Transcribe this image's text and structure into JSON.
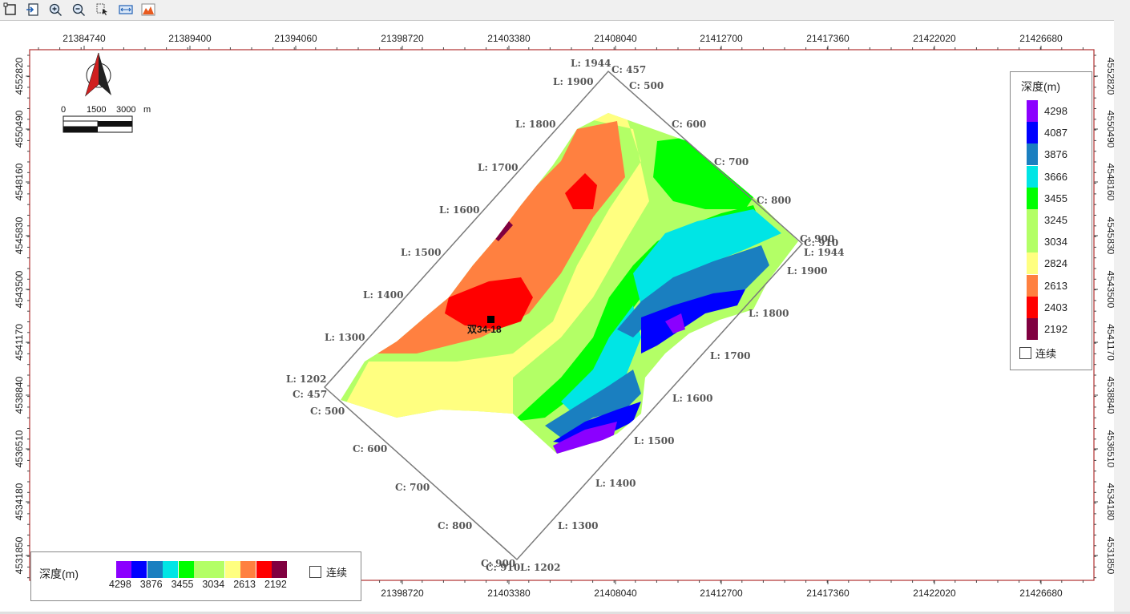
{
  "toolbar": {
    "buttons": [
      {
        "name": "select-rect-button",
        "icon": "select-rect-icon"
      },
      {
        "name": "save-image-button",
        "icon": "save-image-icon"
      },
      {
        "name": "zoom-in-button",
        "icon": "zoom-in-icon"
      },
      {
        "name": "zoom-out-button",
        "icon": "zoom-out-icon"
      },
      {
        "name": "pointer-tool-button",
        "icon": "pointer-icon"
      },
      {
        "name": "fit-width-button",
        "icon": "fit-width-icon"
      },
      {
        "name": "color-scale-button",
        "icon": "color-scale-icon"
      }
    ]
  },
  "map": {
    "x_ticks": [
      "21384740",
      "21389400",
      "21394060",
      "21398720",
      "21403380",
      "21408040",
      "21412700",
      "21417360",
      "21422020",
      "21426680"
    ],
    "y_ticks": [
      "4552820",
      "4550490",
      "4548160",
      "4545830",
      "4543500",
      "4541170",
      "4538840",
      "4536510",
      "4534180",
      "4531850"
    ],
    "scale_bar": {
      "labels": [
        "0",
        "1500",
        "3000",
        "m"
      ]
    },
    "well_label": "双34-18",
    "survey_labels": {
      "top_lines": [
        "L: 1944",
        "L: 1900",
        "L: 1800",
        "L: 1700",
        "L: 1600",
        "L: 1500",
        "L: 1400",
        "L: 1300",
        "L: 1202"
      ],
      "left_cols": [
        "C: 457",
        "C: 500",
        "C: 600",
        "C: 700",
        "C: 800",
        "C: 900",
        "C: 910"
      ],
      "upper_cols": [
        "C: 457",
        "C: 500",
        "C: 600",
        "C: 700",
        "C: 800",
        "C: 900",
        "C: 910"
      ],
      "right_lines": [
        "L: 1944",
        "L: 1900",
        "L: 1800",
        "L: 1700",
        "L: 1600",
        "L: 1500",
        "L: 1400",
        "L: 1300",
        "L: 1202"
      ]
    },
    "colors": {
      "frame": "#b03030",
      "4298": "#8b00ff",
      "4087": "#0000ff",
      "3876": "#1a7fc0",
      "3666": "#00e5e5",
      "3455": "#00ff00",
      "3245": "#b3ff66",
      "3034": "#b3ff66",
      "2824": "#ffff80",
      "2613": "#ff8040",
      "2403": "#ff0000",
      "2192": "#800040"
    }
  },
  "legend_vertical": {
    "title": "深度(m)",
    "items": [
      {
        "label": "4298",
        "color": "#8b00ff"
      },
      {
        "label": "4087",
        "color": "#0000ff"
      },
      {
        "label": "3876",
        "color": "#1a7fc0"
      },
      {
        "label": "3666",
        "color": "#00e5e5"
      },
      {
        "label": "3455",
        "color": "#00ff00"
      },
      {
        "label": "3245",
        "color": "#b3ff66"
      },
      {
        "label": "3034",
        "color": "#b3ff66"
      },
      {
        "label": "2824",
        "color": "#ffff80"
      },
      {
        "label": "2613",
        "color": "#ff8040"
      },
      {
        "label": "2403",
        "color": "#ff0000"
      },
      {
        "label": "2192",
        "color": "#800040"
      }
    ],
    "continuous_label": "连续"
  },
  "legend_horizontal": {
    "title": "深度(m)",
    "swatches": [
      "#8b00ff",
      "#0000ff",
      "#1a7fc0",
      "#00e5e5",
      "#00ff00",
      "#b3ff66",
      "#b3ff66",
      "#ffff80",
      "#ff8040",
      "#ff0000",
      "#800040"
    ],
    "labels": [
      "4298",
      "3876",
      "3455",
      "3034",
      "2613",
      "2192"
    ],
    "continuous_label": "连续"
  }
}
